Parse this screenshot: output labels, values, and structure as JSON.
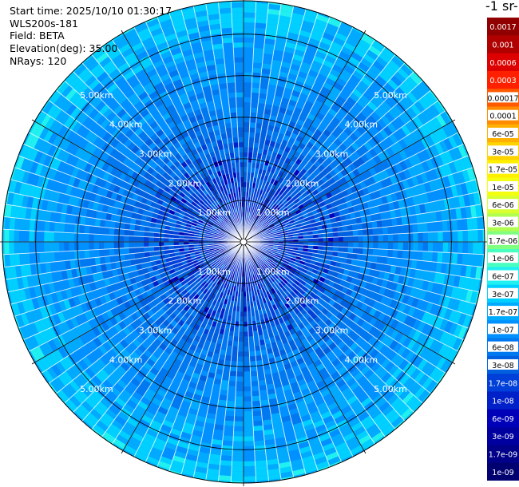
{
  "info": {
    "start_time": "Start time: 2025/10/10 01:30:17",
    "instrument": "WLS200s-181",
    "field": "Field: BETA",
    "elevation": "Elevation(deg): 35.00",
    "nrays": "NRays: 120"
  },
  "colorbar": {
    "title": "-1 sr-",
    "labels": [
      "0.0017",
      "0.001",
      "0.0006",
      "0.0003",
      "0.00017",
      "0.0001",
      "6e-05",
      "3e-05",
      "1.7e-05",
      "1e-05",
      "6e-06",
      "3e-06",
      "1.7e-06",
      "1e-06",
      "6e-07",
      "3e-07",
      "1.7e-07",
      "1e-07",
      "6e-08",
      "3e-08",
      "1.7e-08",
      "1e-08",
      "6e-09",
      "3e-09",
      "1.7e-09",
      "1e-09"
    ],
    "colors": [
      "#900000",
      "#b00000",
      "#dd0000",
      "#ff2000",
      "#ff5a00",
      "#ff8c00",
      "#ffb000",
      "#ffd200",
      "#fff000",
      "#f4ff10",
      "#d8ff30",
      "#b0ff50",
      "#80ff80",
      "#48ffc0",
      "#20f0f0",
      "#00d0ff",
      "#00aaff",
      "#0090ff",
      "#0078f0",
      "#0060e0",
      "#0040d8",
      "#0020c8",
      "#0000b8",
      "#0000a0",
      "#000088",
      "#000070"
    ]
  },
  "chart_data": {
    "type": "heatmap",
    "projection": "polar-ppi",
    "field": "BETA",
    "nrays": 120,
    "elevation_deg": 35.0,
    "range_rings_km": [
      1,
      2,
      3,
      4,
      5
    ],
    "ring_labels": [
      "1.00km",
      "2.00km",
      "3.00km",
      "4.00km",
      "5.00km"
    ],
    "max_range_km": 5.8,
    "azimuth_spokes_deg": [
      0,
      30,
      60,
      90,
      120,
      150,
      180,
      210,
      240,
      270,
      300,
      330
    ],
    "value_profile_by_range_km": {
      "range_km": [
        0.2,
        1.0,
        2.0,
        3.0,
        4.0,
        5.0,
        5.8
      ],
      "typical_value": [
        1e-08,
        1.7e-08,
        3e-08,
        6e-08,
        1e-07,
        1.7e-07,
        3e-07
      ]
    },
    "colorscale": "log, 1e-09 to 0.0017"
  }
}
